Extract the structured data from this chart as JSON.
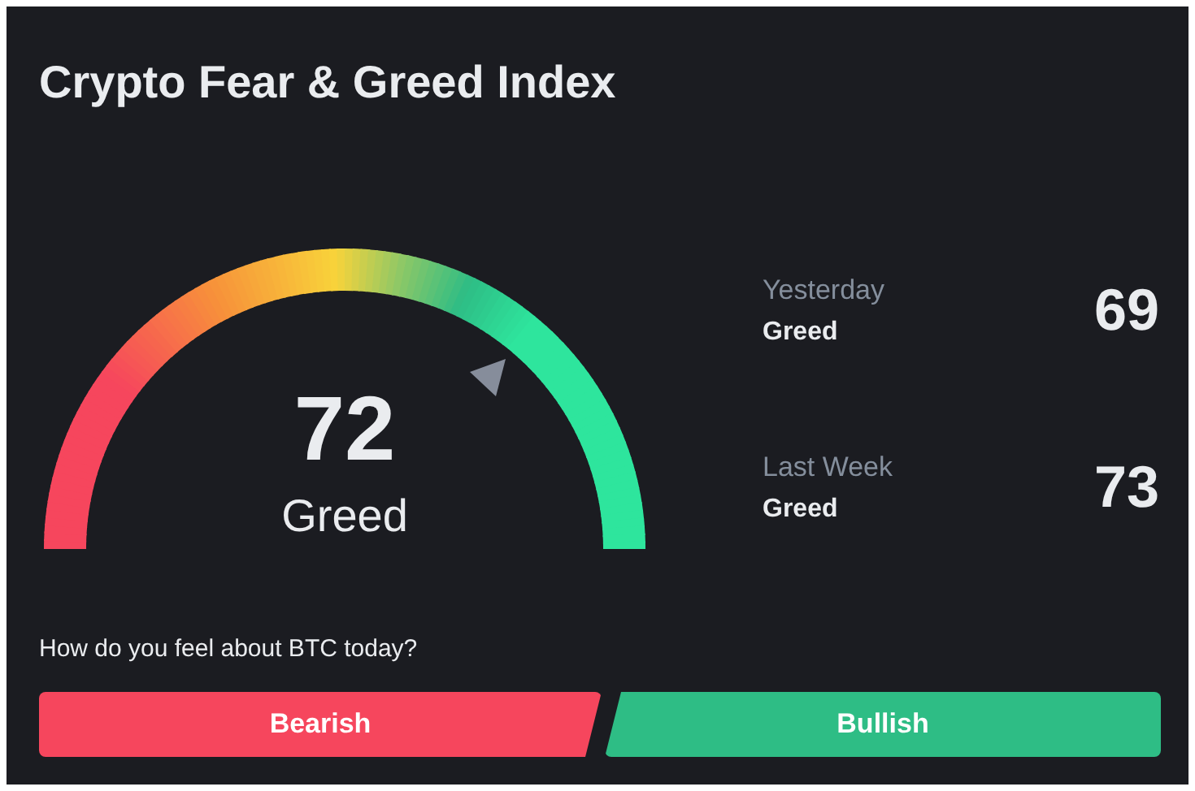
{
  "chart_data": {
    "type": "other",
    "title": "Crypto Fear & Greed Index",
    "categories": [
      null,
      "Yesterday",
      "Last Week"
    ],
    "values": [
      72,
      69,
      73
    ],
    "data_labels": true,
    "annotations": [
      "Greed",
      "Greed",
      "Greed",
      "How do you feel about BTC today?",
      "Bearish",
      "Bullish"
    ]
  }
}
